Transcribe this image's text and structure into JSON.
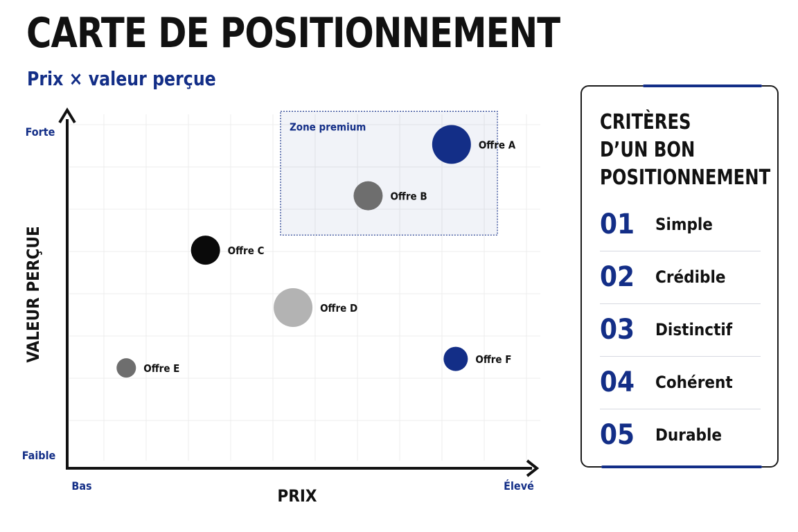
{
  "title": "CARTE DE POSITIONNEMENT",
  "subtitle": "Prix × valeur perçue",
  "chart_data": {
    "type": "scatter",
    "xlabel": "PRIX",
    "ylabel": "VALEUR PERÇUE",
    "x_min_label": "Bas",
    "x_max_label": "Élevé",
    "y_min_label": "Faible",
    "y_max_label": "Forte",
    "xlim": [
      0,
      10
    ],
    "ylim": [
      0,
      10
    ],
    "grid": true,
    "zone": {
      "label": "Zone premium",
      "x": [
        5.1,
        10.3
      ],
      "y": [
        6.3,
        10.4
      ],
      "color": "#132e87"
    },
    "points": [
      {
        "label": "Offre A",
        "x": 9.2,
        "y": 9.3,
        "size": 3,
        "color": "#132e87"
      },
      {
        "label": "Offre B",
        "x": 7.2,
        "y": 7.6,
        "size": 2,
        "color": "#6e6e6e"
      },
      {
        "label": "Offre C",
        "x": 3.3,
        "y": 5.8,
        "size": 2,
        "color": "#0a0a0a"
      },
      {
        "label": "Offre D",
        "x": 5.4,
        "y": 3.9,
        "size": 3,
        "color": "#b3b3b3"
      },
      {
        "label": "Offre F",
        "x": 9.3,
        "y": 2.2,
        "size": 1.5,
        "color": "#132e87"
      },
      {
        "label": "Offre E",
        "x": 1.4,
        "y": 1.9,
        "size": 1,
        "color": "#6e6e6e"
      }
    ]
  },
  "criteria": {
    "title": "CRITÈRES\nD’UN BON\nPOSITIONNEMENT",
    "items": [
      {
        "num": "01",
        "label": "Simple"
      },
      {
        "num": "02",
        "label": "Crédible"
      },
      {
        "num": "03",
        "label": "Distinctif"
      },
      {
        "num": "04",
        "label": "Cohérent"
      },
      {
        "num": "05",
        "label": "Durable"
      }
    ]
  }
}
